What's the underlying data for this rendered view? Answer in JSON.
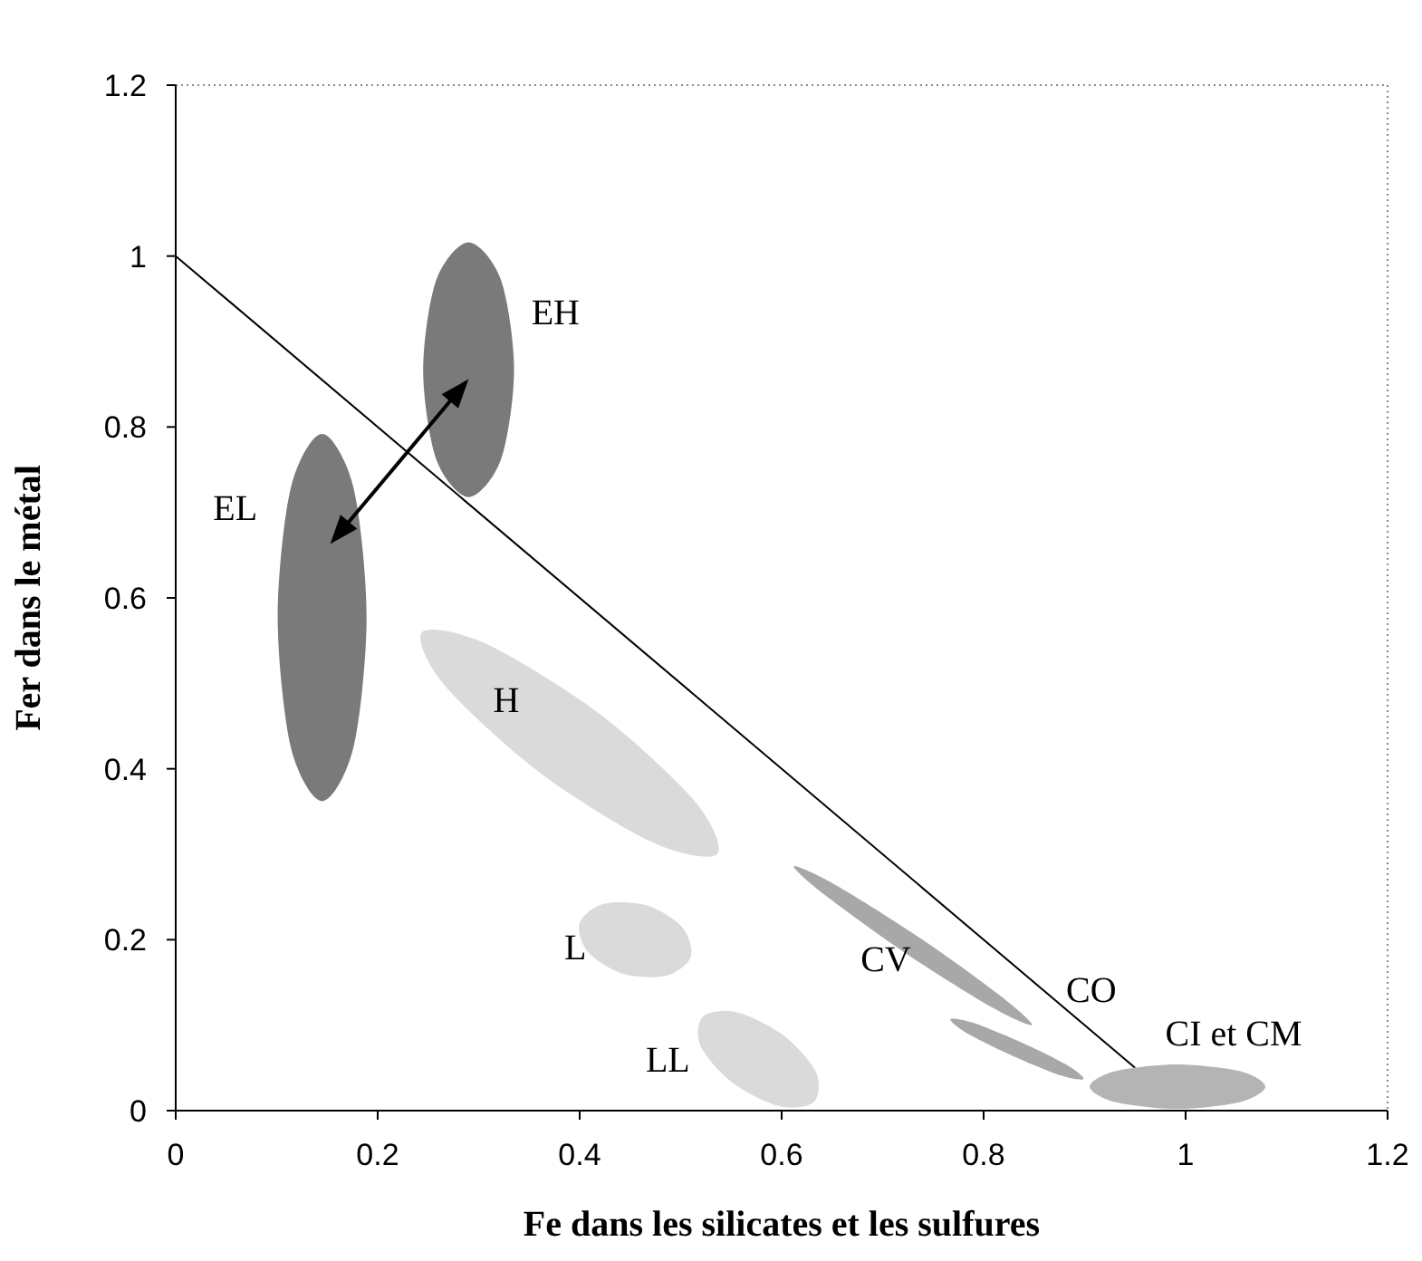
{
  "chart_data": {
    "type": "area",
    "xlabel": "Fe dans les silicates et les sulfures",
    "ylabel": "Fer dans le métal",
    "xlim": [
      0,
      1.2
    ],
    "xticks": [
      0,
      0.2,
      0.4,
      0.6,
      0.8,
      1,
      1.2
    ],
    "ylim": [
      0,
      1.2
    ],
    "yticks": [
      0,
      0.2,
      0.4,
      0.6,
      0.8,
      1,
      1.2
    ],
    "grid": false,
    "series": [
      {
        "type": "line",
        "color": "#000000",
        "x": [
          0,
          0.95
        ],
        "values": [
          1,
          0.05
        ]
      },
      {
        "name": "EH",
        "color": "#7a7a7a",
        "x": [
          0.335,
          0.322,
          0.29,
          0.258,
          0.245,
          0.258,
          0.29,
          0.322
        ],
        "values": [
          0.867,
          0.972,
          1.016,
          0.972,
          0.867,
          0.762,
          0.718,
          0.762
        ]
      },
      {
        "name": "EL",
        "color": "#7a7a7a",
        "x": [
          0.189,
          0.176,
          0.145,
          0.114,
          0.101,
          0.114,
          0.145,
          0.176
        ],
        "values": [
          0.577,
          0.729,
          0.792,
          0.729,
          0.577,
          0.425,
          0.362,
          0.425
        ]
      },
      {
        "name": "H",
        "color": "#dadada",
        "x": [
          0.42,
          0.514,
          0.536,
          0.472,
          0.36,
          0.266,
          0.244,
          0.308
        ],
        "values": [
          0.464,
          0.362,
          0.3,
          0.314,
          0.396,
          0.498,
          0.56,
          0.546
        ]
      },
      {
        "name": "L",
        "color": "#dadada",
        "x": [
          0.467,
          0.502,
          0.51,
          0.486,
          0.443,
          0.408,
          0.4,
          0.424
        ],
        "values": [
          0.24,
          0.214,
          0.18,
          0.158,
          0.16,
          0.186,
          0.22,
          0.242
        ]
      },
      {
        "name": "LL",
        "color": "#dadada",
        "x": [
          0.602,
          0.634,
          0.632,
          0.598,
          0.552,
          0.52,
          0.522,
          0.556
        ],
        "values": [
          0.088,
          0.045,
          0.01,
          0.005,
          0.032,
          0.075,
          0.11,
          0.115
        ]
      },
      {
        "name": "CV",
        "color": "#a8a8a8",
        "x": [
          0.737,
          0.818,
          0.848,
          0.808,
          0.723,
          0.642,
          0.612,
          0.652
        ],
        "values": [
          0.202,
          0.133,
          0.1,
          0.121,
          0.184,
          0.253,
          0.286,
          0.265
        ]
      },
      {
        "name": "CO",
        "color": "#a8a8a8",
        "x": [
          0.837,
          0.883,
          0.899,
          0.877,
          0.829,
          0.783,
          0.767,
          0.789
        ],
        "values": [
          0.08,
          0.053,
          0.037,
          0.041,
          0.064,
          0.091,
          0.107,
          0.103
        ]
      },
      {
        "name": "CI et CM",
        "color": "#b4b4b4",
        "x": [
          0.992,
          1.054,
          1.079,
          1.054,
          0.992,
          0.93,
          0.905,
          0.93
        ],
        "values": [
          0.054,
          0.046,
          0.028,
          0.01,
          0.002,
          0.01,
          0.028,
          0.046
        ]
      }
    ]
  }
}
